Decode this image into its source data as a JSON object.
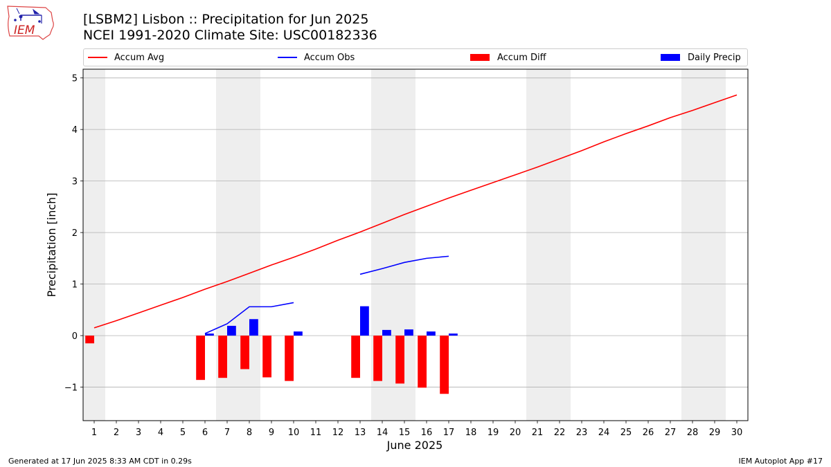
{
  "title": "[LSBM2] Lisbon :: Precipitation for Jun 2025",
  "subtitle": "NCEI 1991-2020 Climate Site: USC00182336",
  "logo": {
    "text": "IEM",
    "icon": "iem-iowa-logo"
  },
  "legend": {
    "accum_avg": "Accum Avg",
    "accum_obs": "Accum Obs",
    "accum_diff": "Accum Diff",
    "daily_precip": "Daily Precip"
  },
  "footer": {
    "left": "Generated at 17 Jun 2025 8:33 AM CDT in 0.29s",
    "right": "IEM Autoplot App #17"
  },
  "colors": {
    "accum_avg": "#ff0000",
    "accum_obs": "#0000ff",
    "accum_diff": "#ff0000",
    "daily_precip": "#0000ff",
    "weekend_shade": "#eeeeee",
    "grid": "#b0b0b0"
  },
  "chart_data": {
    "type": "bar",
    "xlabel": "June 2025",
    "ylabel": "Precipitation [inch]",
    "x": [
      1,
      2,
      3,
      4,
      5,
      6,
      7,
      8,
      9,
      10,
      11,
      12,
      13,
      14,
      15,
      16,
      17,
      18,
      19,
      20,
      21,
      22,
      23,
      24,
      25,
      26,
      27,
      28,
      29,
      30
    ],
    "xlim": [
      0.5,
      30.5
    ],
    "ylim": [
      -1.65,
      5.17
    ],
    "yticks": [
      -1,
      0,
      1,
      2,
      3,
      4,
      5
    ],
    "grid": "horizontal",
    "legend_position": "top",
    "weekend_days": [
      1,
      7,
      8,
      14,
      15,
      21,
      22,
      28,
      29
    ],
    "series": [
      {
        "name": "Accum Avg",
        "kind": "line",
        "x": [
          1,
          2,
          3,
          4,
          5,
          6,
          7,
          8,
          9,
          10,
          11,
          12,
          13,
          14,
          15,
          16,
          17,
          18,
          19,
          20,
          21,
          22,
          23,
          24,
          25,
          26,
          27,
          28,
          29,
          30
        ],
        "values": [
          0.15,
          0.29,
          0.44,
          0.59,
          0.74,
          0.9,
          1.05,
          1.21,
          1.37,
          1.52,
          1.68,
          1.85,
          2.01,
          2.18,
          2.35,
          2.51,
          2.67,
          2.82,
          2.97,
          3.12,
          3.27,
          3.43,
          3.59,
          3.76,
          3.92,
          4.07,
          4.23,
          4.37,
          4.52,
          4.67
        ]
      },
      {
        "name": "Accum Obs",
        "kind": "line",
        "segments": [
          {
            "x": [
              6,
              7,
              8,
              9,
              10
            ],
            "values": [
              0.04,
              0.23,
              0.56,
              0.56,
              0.64
            ]
          },
          {
            "x": [
              13,
              14,
              15,
              16,
              17
            ],
            "values": [
              1.19,
              1.3,
              1.42,
              1.5,
              1.54
            ]
          }
        ]
      },
      {
        "name": "Accum Diff",
        "kind": "bar",
        "offset": -0.2,
        "x": [
          1,
          6,
          7,
          8,
          9,
          10,
          13,
          14,
          15,
          16,
          17
        ],
        "values": [
          -0.15,
          -0.86,
          -0.82,
          -0.65,
          -0.81,
          -0.88,
          -0.82,
          -0.88,
          -0.93,
          -1.01,
          -1.13
        ]
      },
      {
        "name": "Daily Precip",
        "kind": "bar",
        "offset": 0.2,
        "x": [
          6,
          7,
          8,
          10,
          13,
          14,
          15,
          16,
          17
        ],
        "values": [
          0.04,
          0.19,
          0.32,
          0.08,
          0.57,
          0.11,
          0.12,
          0.08,
          0.04
        ]
      }
    ]
  }
}
